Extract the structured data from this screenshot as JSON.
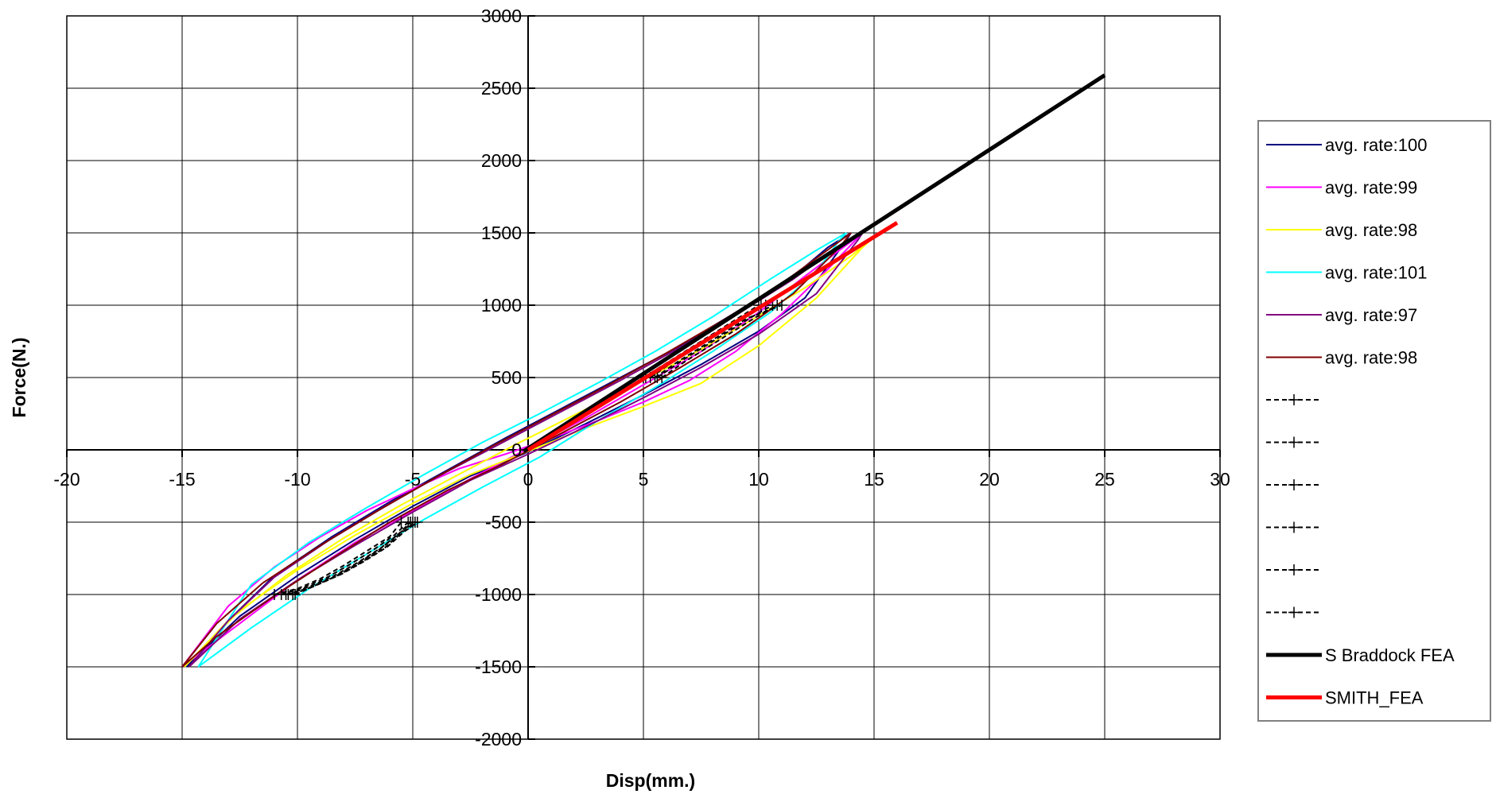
{
  "chart_data": {
    "type": "scatter",
    "title": "",
    "xlabel": "Disp(mm.)",
    "ylabel": "Force(N.)",
    "xlim": [
      -20,
      30
    ],
    "ylim": [
      -2000,
      3000
    ],
    "x_ticks": [
      "-20",
      "-15",
      "-10",
      "-5",
      "0",
      "5",
      "10",
      "15",
      "20",
      "25",
      "30"
    ],
    "y_ticks": [
      "3000",
      "2500",
      "2000",
      "1500",
      "1000",
      "500",
      "0",
      "-500",
      "-1000",
      "-1500",
      "-2000"
    ],
    "grid": true,
    "legend_position": "right",
    "series": [
      {
        "name": "avg. rate:100",
        "color": "#000080",
        "style": "solid",
        "x": [
          -14.8,
          -12.5,
          -10,
          -7.5,
          -5,
          -2.5,
          0,
          2.5,
          5,
          7.5,
          10,
          12,
          13.8,
          14.0,
          13.0,
          11.5,
          9,
          6.5,
          4,
          1.5,
          -1,
          -3.5,
          -6,
          -8.5,
          -11,
          -13,
          -14.8
        ],
        "y": [
          -1500,
          -1150,
          -870,
          -620,
          -390,
          -180,
          -15,
          180,
          380,
          590,
          820,
          1050,
          1450,
          1500,
          1400,
          1200,
          950,
          710,
          500,
          290,
          80,
          -140,
          -360,
          -600,
          -870,
          -1180,
          -1500
        ]
      },
      {
        "name": "avg. rate:99",
        "color": "#ff00ff",
        "style": "solid",
        "x": [
          -15.0,
          -13,
          -11,
          -9,
          -7,
          -5,
          -3,
          -1,
          1,
          3,
          5,
          7,
          9,
          11,
          13,
          14.5,
          13.5,
          12,
          10,
          7.5,
          5,
          2.5,
          0,
          -2.5,
          -5,
          -7.5,
          -10,
          -12.5,
          -15.0
        ],
        "y": [
          -1500,
          -1080,
          -810,
          -600,
          -420,
          -270,
          -130,
          -30,
          80,
          200,
          330,
          480,
          680,
          940,
          1250,
          1500,
          1380,
          1200,
          950,
          680,
          450,
          220,
          10,
          -200,
          -420,
          -640,
          -900,
          -1200,
          -1500
        ]
      },
      {
        "name": "avg. rate:98",
        "color": "#ffff00",
        "style": "solid",
        "x": [
          -14.9,
          -12.5,
          -10,
          -7.5,
          -5,
          -2.5,
          0,
          2.5,
          5,
          7.5,
          10,
          12.5,
          14.5,
          15.2,
          14,
          12,
          9.5,
          7,
          4.5,
          2,
          -0.5,
          -3,
          -5.5,
          -8,
          -10.5,
          -13,
          -14.9
        ],
        "y": [
          -1500,
          -1110,
          -830,
          -590,
          -370,
          -170,
          -10,
          150,
          300,
          460,
          720,
          1050,
          1400,
          1500,
          1340,
          1120,
          880,
          650,
          440,
          240,
          40,
          -170,
          -380,
          -610,
          -870,
          -1180,
          -1500
        ]
      },
      {
        "name": "avg. rate:101",
        "color": "#00ffff",
        "style": "solid",
        "x": [
          -14.3,
          -12,
          -9.5,
          -7,
          -4.5,
          -2,
          0.5,
          3,
          5.5,
          8,
          10.5,
          12.5,
          13.5,
          13.8,
          12.5,
          10.5,
          8,
          5.5,
          3,
          0.5,
          -2,
          -4.5,
          -7,
          -9.5,
          -12,
          -14.3
        ],
        "y": [
          -1500,
          -1230,
          -960,
          -720,
          -480,
          -260,
          -50,
          200,
          430,
          680,
          950,
          1230,
          1450,
          1500,
          1380,
          1180,
          920,
          680,
          460,
          250,
          50,
          -170,
          -400,
          -640,
          -930,
          -1500
        ]
      },
      {
        "name": "avg. rate:97",
        "color": "#800080",
        "style": "solid",
        "x": [
          -14.7,
          -12.5,
          -10,
          -7.5,
          -5,
          -2.5,
          0,
          2.5,
          5,
          7.5,
          10,
          12.5,
          14.3,
          14.5,
          13.2,
          11.5,
          9,
          6.5,
          4,
          1.5,
          -1,
          -3.5,
          -6,
          -8.5,
          -11,
          -13,
          -14.7
        ],
        "y": [
          -1500,
          -1170,
          -900,
          -660,
          -430,
          -210,
          -30,
          160,
          360,
          570,
          800,
          1080,
          1450,
          1500,
          1380,
          1180,
          930,
          700,
          480,
          270,
          60,
          -150,
          -370,
          -610,
          -880,
          -1180,
          -1500
        ]
      },
      {
        "name": "avg. rate:98",
        "color": "#800000",
        "style": "solid",
        "x": [
          -15.0,
          -13.5,
          -11,
          -8.5,
          -6,
          -3.5,
          -1,
          1.5,
          4,
          6.5,
          9,
          11.5,
          13.5,
          14.0,
          12.8,
          11,
          8.5,
          6,
          3.5,
          1,
          -1.5,
          -4,
          -6.5,
          -9,
          -11.5,
          -13.5,
          -15.0
        ],
        "y": [
          -1500,
          -1290,
          -1010,
          -750,
          -500,
          -280,
          -90,
          120,
          330,
          560,
          800,
          1080,
          1400,
          1500,
          1360,
          1150,
          900,
          670,
          450,
          240,
          30,
          -190,
          -420,
          -660,
          -920,
          -1200,
          -1500
        ]
      },
      {
        "name": "",
        "color": "#000000",
        "style": "dashed-plus",
        "x": [
          -11.0,
          -10.0,
          -9.0,
          -8.0,
          -7.0,
          -6.0,
          -5.5,
          5.0,
          6.0,
          7.0,
          8.0,
          9.0,
          10.0
        ],
        "y": [
          -1000,
          -960,
          -890,
          -800,
          -700,
          -600,
          -500,
          500,
          600,
          700,
          800,
          900,
          1000
        ]
      },
      {
        "name": "",
        "color": "#000000",
        "style": "dashed-plus",
        "x": [
          -10.7,
          -9.7,
          -8.7,
          -7.7,
          -6.7,
          -5.8,
          -5.2,
          5.3,
          6.3,
          7.3,
          8.3,
          9.3,
          10.3
        ],
        "y": [
          -1000,
          -950,
          -880,
          -790,
          -690,
          -590,
          -500,
          500,
          610,
          710,
          810,
          910,
          1000
        ]
      },
      {
        "name": "",
        "color": "#000000",
        "style": "dashed-plus",
        "x": [
          -10.4,
          -9.4,
          -8.4,
          -7.4,
          -6.4,
          -5.6,
          -5.0,
          5.6,
          6.6,
          7.6,
          8.6,
          9.6,
          10.6
        ],
        "y": [
          -1000,
          -940,
          -870,
          -780,
          -680,
          -580,
          -500,
          500,
          610,
          710,
          810,
          910,
          1000
        ]
      },
      {
        "name": "",
        "color": "#000000",
        "style": "dashed-plus",
        "x": [
          -10.1,
          -9.1,
          -8.1,
          -7.1,
          -6.1,
          -5.4,
          -4.8,
          5.8,
          6.8,
          7.8,
          8.8,
          9.8,
          10.8
        ],
        "y": [
          -1000,
          -930,
          -860,
          -770,
          -670,
          -570,
          -500,
          500,
          610,
          710,
          810,
          910,
          1000
        ]
      },
      {
        "name": "",
        "color": "#000000",
        "style": "dashed-plus",
        "x": [
          -10.5,
          -9.5,
          -8.5,
          -7.5,
          -6.5,
          -5.7,
          -5.1,
          5.1,
          6.1,
          7.1,
          8.1,
          9.1,
          10.1
        ],
        "y": [
          -1000,
          -955,
          -885,
          -795,
          -695,
          -595,
          -500,
          500,
          600,
          700,
          800,
          900,
          1000
        ]
      },
      {
        "name": "",
        "color": "#000000",
        "style": "dashed-plus",
        "x": [
          -10.2,
          -9.2,
          -8.2,
          -7.2,
          -6.2,
          -5.5,
          -4.9,
          5.5,
          6.5,
          7.5,
          8.5,
          9.5,
          11.0
        ],
        "y": [
          -1000,
          -935,
          -865,
          -775,
          -675,
          -575,
          -500,
          500,
          610,
          710,
          810,
          910,
          1000
        ]
      },
      {
        "name": "S Braddock FEA",
        "color": "#000000",
        "style": "thick",
        "x": [
          -0.2,
          25
        ],
        "y": [
          -10,
          2590
        ]
      },
      {
        "name": "SMITH_FEA",
        "color": "#ff0000",
        "style": "thick",
        "x": [
          0,
          16
        ],
        "y": [
          0,
          1570
        ]
      }
    ]
  }
}
